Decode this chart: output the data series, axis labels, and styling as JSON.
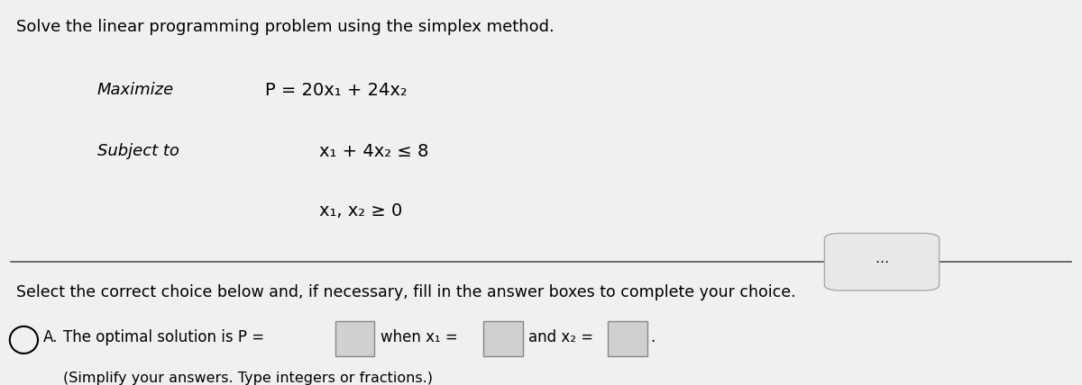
{
  "title": "Solve the linear programming problem using the simplex method.",
  "maximize_label": "Maximize",
  "maximize_eq": "P = 20x₁ + 24x₂",
  "subject_label": "Subject to",
  "constraint1": "x₁ + 4x₂ ≤ 8",
  "constraint2": "x₁, x₂ ≥ 0",
  "select_text": "Select the correct choice below and, if necessary, fill in the answer boxes to complete your choice.",
  "choice_a_label": "A.",
  "choice_a_text1": "The optimal solution is P =",
  "choice_a_text2": "when x₁ =",
  "choice_a_text3": "and x₂ =",
  "simplify_text": "(Simplify your answers. Type integers or fractions.)",
  "bg_color": "#f0f0f0",
  "text_color": "#000000",
  "box_fill_color": "#d0d0d0",
  "box_edge_color": "#888888",
  "divider_color": "#555555",
  "font_size_title": 13,
  "font_size_body": 12,
  "font_size_math": 13,
  "dots_button_color": "#e8e8e8",
  "dots_button_border": "#aaaaaa"
}
